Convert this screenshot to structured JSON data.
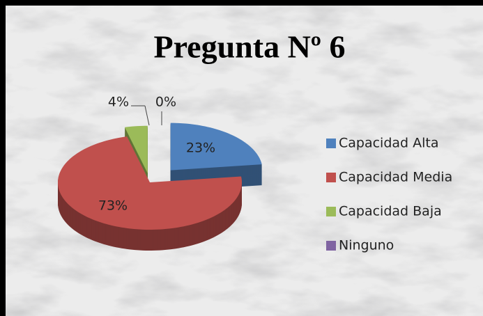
{
  "chart_data": {
    "type": "pie",
    "title": "Pregunta Nº 6",
    "categories": [
      "Capacidad Alta",
      "Capacidad Media",
      "Capacidad Baja",
      "Ninguno"
    ],
    "values": [
      23,
      73,
      4,
      0
    ],
    "value_labels": [
      "23%",
      "73%",
      "4%",
      "0%"
    ],
    "colors": [
      "#4f81bd",
      "#c0504d",
      "#9bbb59",
      "#8064a2"
    ],
    "legend": "right"
  }
}
